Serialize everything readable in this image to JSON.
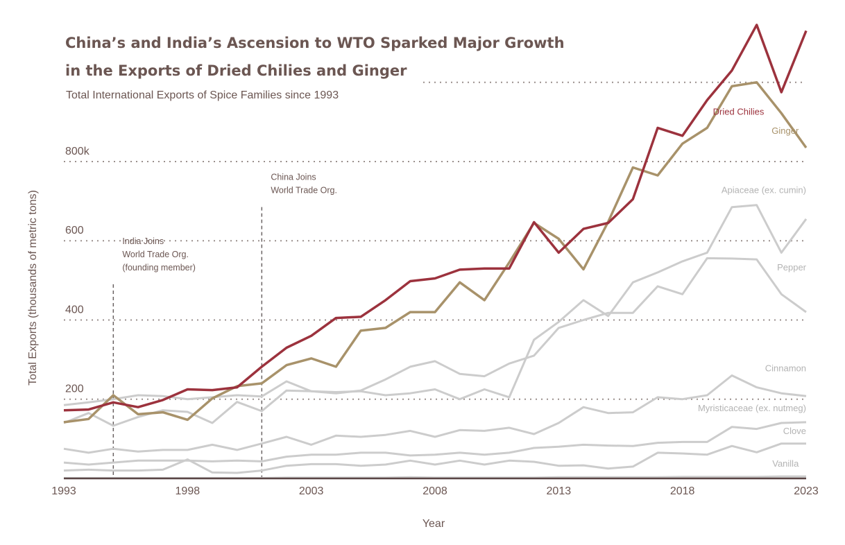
{
  "chart_data": {
    "type": "line",
    "title_lines": [
      "China’s and India’s Ascension to WTO Sparked Major Growth",
      "in the Exports of Dried Chilies and Ginger"
    ],
    "subtitle": "Total International Exports of Spice Families since 1993",
    "xlabel": "Year",
    "ylabel": "Total Exports (thousands of metric tons)",
    "xlim": [
      1993,
      2023
    ],
    "ylim": [
      0,
      1150
    ],
    "x_ticks": [
      {
        "value": 1993,
        "label": "1993"
      },
      {
        "value": 1998,
        "label": "1998"
      },
      {
        "value": 2003,
        "label": "2003"
      },
      {
        "value": 2008,
        "label": "2008"
      },
      {
        "value": 2013,
        "label": "2013"
      },
      {
        "value": 2018,
        "label": "2018"
      },
      {
        "value": 2023,
        "label": "2023"
      }
    ],
    "y_ticks": [
      {
        "value": 200,
        "label": "200"
      },
      {
        "value": 400,
        "label": "400"
      },
      {
        "value": 600,
        "label": "600"
      },
      {
        "value": 800,
        "label": "800k"
      },
      {
        "value": 1000,
        "label": ""
      }
    ],
    "annotations": [
      {
        "year": 1995,
        "y_top": 490,
        "lines": [
          "India Joins",
          "World Trade Org.",
          "(founding member)"
        ]
      },
      {
        "year": 2001,
        "y_top": 685,
        "lines": [
          "China Joins",
          "World Trade Org."
        ]
      }
    ],
    "years": [
      1993,
      1994,
      1995,
      1996,
      1997,
      1998,
      1999,
      2000,
      2001,
      2002,
      2003,
      2004,
      2005,
      2006,
      2007,
      2008,
      2009,
      2010,
      2011,
      2012,
      2013,
      2014,
      2015,
      2016,
      2017,
      2018,
      2019,
      2020,
      2021,
      2022,
      2023
    ],
    "series": [
      {
        "name": "Vanilla",
        "color": "#cccccc",
        "highlight": false,
        "label_year": 2022.7,
        "label_y": 30,
        "values": [
          1,
          1,
          1,
          1,
          1,
          1,
          1,
          1,
          1,
          2,
          2,
          2,
          2,
          2,
          3,
          2,
          2,
          2,
          2,
          2,
          3,
          3,
          3,
          3,
          3,
          4,
          4,
          4,
          4,
          5,
          5
        ]
      },
      {
        "name": "Clove",
        "color": "#cccccc",
        "highlight": false,
        "label_year": 2023,
        "label_y": 112,
        "values": [
          20,
          22,
          20,
          20,
          22,
          48,
          15,
          14,
          20,
          32,
          36,
          36,
          32,
          35,
          45,
          35,
          45,
          35,
          45,
          42,
          32,
          33,
          25,
          30,
          65,
          63,
          60,
          82,
          66,
          88,
          88
        ]
      },
      {
        "name": "Myristicaceae (ex. nutmeg)",
        "color": "#cccccc",
        "highlight": false,
        "label_year": 2023,
        "label_y": 170,
        "values": [
          40,
          35,
          40,
          45,
          45,
          45,
          43,
          45,
          43,
          55,
          60,
          60,
          65,
          65,
          58,
          60,
          65,
          60,
          65,
          77,
          80,
          85,
          83,
          82,
          90,
          92,
          92,
          130,
          125,
          140,
          142
        ]
      },
      {
        "name": "Cinnamon",
        "color": "#cccccc",
        "highlight": false,
        "label_year": 2023,
        "label_y": 270,
        "values": [
          75,
          65,
          75,
          68,
          72,
          72,
          85,
          72,
          88,
          105,
          85,
          108,
          105,
          110,
          120,
          105,
          122,
          120,
          128,
          112,
          140,
          180,
          165,
          167,
          205,
          200,
          210,
          260,
          230,
          215,
          208
        ]
      },
      {
        "name": "Pepper",
        "color": "#cccccc",
        "highlight": false,
        "label_year": 2023,
        "label_y": 525,
        "values": [
          140,
          165,
          133,
          155,
          172,
          168,
          140,
          193,
          170,
          222,
          220,
          215,
          222,
          250,
          282,
          296,
          264,
          258,
          290,
          310,
          380,
          400,
          418,
          418,
          485,
          465,
          556,
          555,
          553,
          465,
          420
        ]
      },
      {
        "name": "Apiaceae (ex. cumin)",
        "color": "#cccccc",
        "highlight": false,
        "label_year": 2023,
        "label_y": 720,
        "values": [
          185,
          192,
          200,
          210,
          208,
          200,
          205,
          210,
          207,
          245,
          220,
          218,
          220,
          210,
          215,
          225,
          200,
          225,
          205,
          350,
          395,
          450,
          410,
          495,
          520,
          548,
          570,
          685,
          690,
          570,
          655
        ]
      },
      {
        "name": "Ginger",
        "color": "#a8926a",
        "highlight": true,
        "label_year": 2022.7,
        "label_y": 870,
        "values": [
          142,
          150,
          210,
          162,
          167,
          148,
          202,
          233,
          240,
          286,
          303,
          282,
          373,
          380,
          420,
          420,
          495,
          450,
          545,
          645,
          605,
          528,
          648,
          785,
          765,
          845,
          885,
          990,
          1000,
          922,
          835
        ]
      },
      {
        "name": "Dried Chilies",
        "color": "#9c323d",
        "highlight": true,
        "label_year": 2021.3,
        "label_y": 918,
        "values": [
          172,
          174,
          192,
          180,
          198,
          225,
          223,
          230,
          282,
          330,
          360,
          405,
          408,
          450,
          498,
          505,
          527,
          530,
          530,
          647,
          570,
          630,
          645,
          705,
          885,
          865,
          955,
          1030,
          1145,
          975,
          1130
        ]
      }
    ]
  }
}
